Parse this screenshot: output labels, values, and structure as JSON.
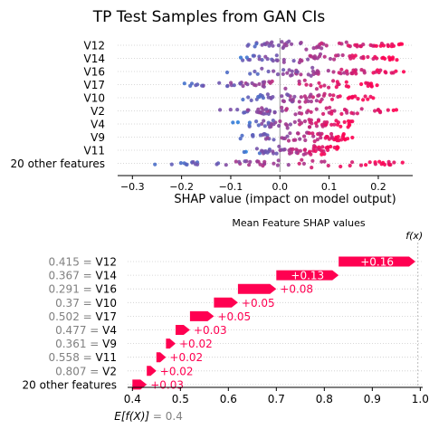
{
  "colors": {
    "low": "#1e88e5",
    "high": "#ff0051",
    "mid": "#8a3fb0",
    "grid": "#cccccc",
    "positive_arrow": "#ff0051",
    "gray_text": "#808080"
  },
  "chart_data": [
    {
      "type": "scatter",
      "title": "TP Test Samples from GAN CIs",
      "xlabel": "SHAP value (impact on model output)",
      "ylabel": "",
      "xlim": [
        -0.33,
        0.27
      ],
      "xticks": [
        "−0.3",
        "−0.2",
        "−0.1",
        "0.0",
        "0.1",
        "0.2"
      ],
      "xtick_values": [
        -0.3,
        -0.2,
        -0.1,
        0.0,
        0.1,
        0.2
      ],
      "features": [
        "V12",
        "V14",
        "V16",
        "V17",
        "V10",
        "V2",
        "V4",
        "V9",
        "V11",
        "20 other features"
      ],
      "feature_ranges": [
        {
          "feature": "V12",
          "min": -0.13,
          "max": 0.25
        },
        {
          "feature": "V14",
          "min": -0.12,
          "max": 0.24
        },
        {
          "feature": "V16",
          "min": -0.12,
          "max": 0.26
        },
        {
          "feature": "V17",
          "min": -0.25,
          "max": 0.2
        },
        {
          "feature": "V10",
          "min": -0.1,
          "max": 0.19
        },
        {
          "feature": "V2",
          "min": -0.2,
          "max": 0.24
        },
        {
          "feature": "V4",
          "min": -0.1,
          "max": 0.15
        },
        {
          "feature": "V9",
          "min": -0.1,
          "max": 0.15
        },
        {
          "feature": "V11",
          "min": -0.08,
          "max": 0.12
        },
        {
          "feature": "20 other features",
          "min": -0.3,
          "max": 0.25
        }
      ]
    },
    {
      "type": "bar",
      "title": "Mean Feature SHAP values",
      "fx_label": "f(x)",
      "base_label": "E[f(X)]",
      "base_value": "0.4",
      "base_value_num": 0.4,
      "fx_value": 0.995,
      "xlim": [
        0.39,
        1.005
      ],
      "xticks": [
        "0.4",
        "0.5",
        "0.6",
        "0.7",
        "0.8",
        "0.9",
        "1.0"
      ],
      "xtick_values": [
        0.4,
        0.5,
        0.6,
        0.7,
        0.8,
        0.9,
        1.0
      ],
      "rows": [
        {
          "value_text": "0.415",
          "feature": "V12",
          "contribution": 0.16,
          "label": "+0.16"
        },
        {
          "value_text": "0.367",
          "feature": "V14",
          "contribution": 0.13,
          "label": "+0.13"
        },
        {
          "value_text": "0.291",
          "feature": "V16",
          "contribution": 0.08,
          "label": "+0.08"
        },
        {
          "value_text": "0.37",
          "feature": "V10",
          "contribution": 0.05,
          "label": "+0.05"
        },
        {
          "value_text": "0.502",
          "feature": "V17",
          "contribution": 0.05,
          "label": "+0.05"
        },
        {
          "value_text": "0.477",
          "feature": "V4",
          "contribution": 0.03,
          "label": "+0.03"
        },
        {
          "value_text": "0.361",
          "feature": "V9",
          "contribution": 0.02,
          "label": "+0.02"
        },
        {
          "value_text": "0.558",
          "feature": "V11",
          "contribution": 0.02,
          "label": "+0.02"
        },
        {
          "value_text": "0.807",
          "feature": "V2",
          "contribution": 0.02,
          "label": "+0.02"
        },
        {
          "value_text": "",
          "feature": "20 other features",
          "contribution": 0.03,
          "label": "+0.03"
        }
      ]
    }
  ]
}
